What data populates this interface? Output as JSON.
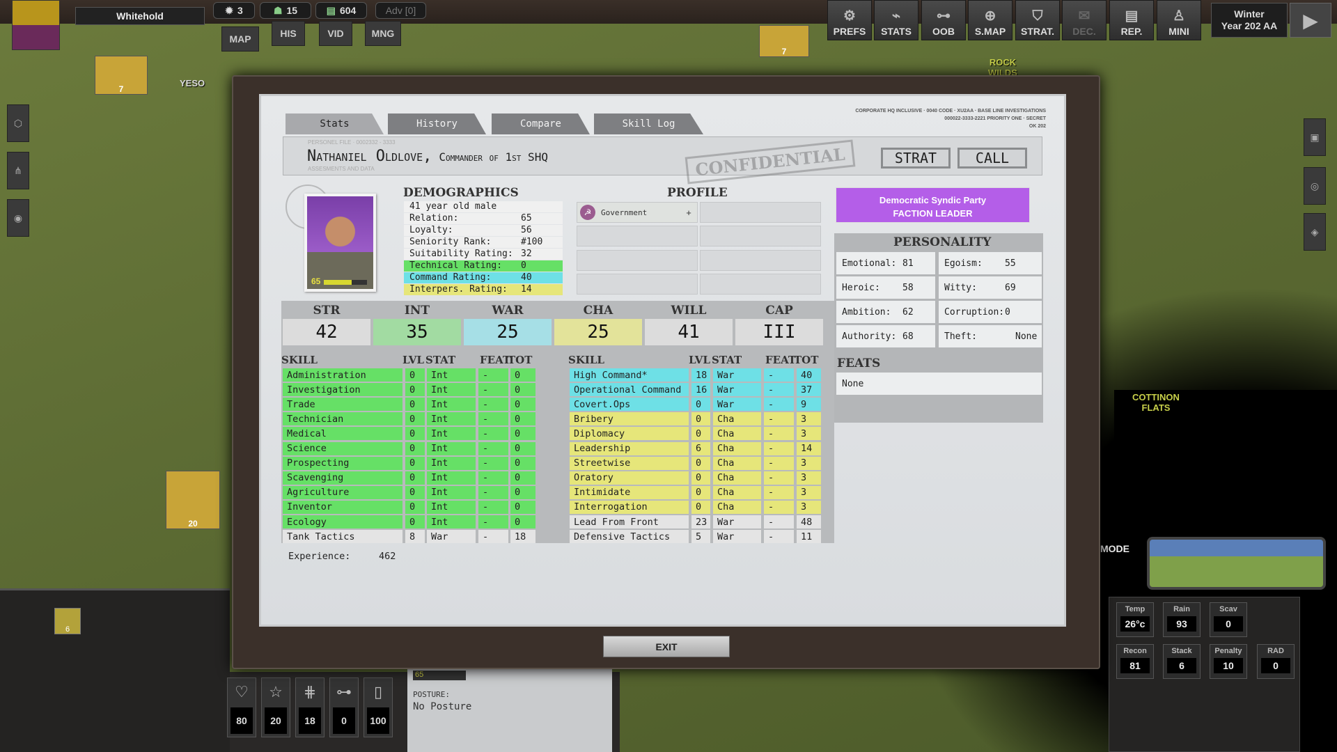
{
  "topbar": {
    "city": "Whitehold",
    "resources": [
      {
        "icon": "gear-icon",
        "value": "3"
      },
      {
        "icon": "soldier-icon",
        "value": "15"
      },
      {
        "icon": "money-icon",
        "value": "604"
      }
    ],
    "adv": "Adv [0]",
    "nav": [
      "MAP",
      "HIS",
      "VID",
      "MNG"
    ],
    "buttons": [
      "PREFS",
      "STATS",
      "OOB",
      "S.MAP",
      "STRAT.",
      "DEC.",
      "REP.",
      "MINI"
    ],
    "season": "Winter",
    "year": "Year 202 AA"
  },
  "map": {
    "labels": [
      "YESO",
      "ROCK WILDS",
      "COTTINON FLATS"
    ],
    "units": [
      {
        "value": "7"
      },
      {
        "value": "7"
      },
      {
        "value": "20"
      }
    ],
    "mode": "MODE"
  },
  "dialog": {
    "tabs": [
      "Stats",
      "History",
      "Compare",
      "Skill Log"
    ],
    "active_tab": "Stats",
    "classification": [
      "CORPORATE HQ INCLUSIVE · 0040 CODE · XU2AA · BASE LINE INVESTIGATIONS",
      "000022-3333-2221 PRIORITY ONE · SECRET",
      "OK 202"
    ],
    "file_label": "PERSONEL FILE · 0002332 - 3333",
    "file_sub": "ASSESMENTS AND DATA",
    "name": "Nathaniel Oldlove,",
    "title": "Commander of 1st SHQ",
    "stamp": "CONFIDENTIAL",
    "strat_button": "STRAT",
    "call_button": "CALL",
    "portrait_level": "65",
    "portrait_bar": 0.65,
    "demographics_title": "DEMOGRAPHICS",
    "demographics": [
      {
        "label": "41 year old male",
        "value": "",
        "color": "#f0f0f0"
      },
      {
        "label": "Relation:",
        "value": "65",
        "color": "#f0f0f0"
      },
      {
        "label": "Loyalty:",
        "value": "56",
        "color": "#f0f0f0"
      },
      {
        "label": "Seniority Rank:",
        "value": "#100",
        "color": "#f0f0f0"
      },
      {
        "label": "Suitability Rating:",
        "value": "32",
        "color": "#f0f0f0"
      },
      {
        "label": "Technical Rating:",
        "value": "0",
        "color": "#66e066"
      },
      {
        "label": "Command Rating:",
        "value": "40",
        "color": "#6ee0e6"
      },
      {
        "label": "Interpers. Rating:",
        "value": "14",
        "color": "#e6e67a"
      }
    ],
    "profile_title": "PROFILE",
    "profile": [
      {
        "label": "Government",
        "action": "+"
      }
    ],
    "faction": {
      "party": "Democratic Syndic Party",
      "role": "FACTION LEADER",
      "color": "#b45ee8"
    },
    "personality_title": "PERSONALITY",
    "personality": [
      {
        "label": "Emotional:",
        "value": "81"
      },
      {
        "label": "Egoism:",
        "value": "55"
      },
      {
        "label": "Heroic:",
        "value": "58"
      },
      {
        "label": "Witty:",
        "value": "69"
      },
      {
        "label": "Ambition:",
        "value": "62"
      },
      {
        "label": "Corruption:",
        "value": "0"
      },
      {
        "label": "Authority:",
        "value": "68"
      },
      {
        "label": "Theft:",
        "value": "None"
      }
    ],
    "feats_title": "FEATS",
    "feats": "None",
    "stats": [
      {
        "label": "STR",
        "value": "42",
        "color": "#dcdcdc"
      },
      {
        "label": "INT",
        "value": "35",
        "color": "#a2dba2"
      },
      {
        "label": "WAR",
        "value": "25",
        "color": "#a6dfe6"
      },
      {
        "label": "CHA",
        "value": "25",
        "color": "#e3e39a"
      },
      {
        "label": "WILL",
        "value": "41",
        "color": "#dcdcdc"
      },
      {
        "label": "CAP",
        "value": "III",
        "color": "#dcdcdc"
      }
    ],
    "skill_headers": [
      "SKILL",
      "LVL",
      "STAT",
      "FEAT",
      "TOT"
    ],
    "skills_left": [
      [
        "Administration",
        "0",
        "Int",
        "-",
        "0",
        "#66e066"
      ],
      [
        "Investigation",
        "0",
        "Int",
        "-",
        "0",
        "#66e066"
      ],
      [
        "Trade",
        "0",
        "Int",
        "-",
        "0",
        "#66e066"
      ],
      [
        "Technician",
        "0",
        "Int",
        "-",
        "0",
        "#66e066"
      ],
      [
        "Medical",
        "0",
        "Int",
        "-",
        "0",
        "#66e066"
      ],
      [
        "Science",
        "0",
        "Int",
        "-",
        "0",
        "#66e066"
      ],
      [
        "Prospecting",
        "0",
        "Int",
        "-",
        "0",
        "#66e066"
      ],
      [
        "Scavenging",
        "0",
        "Int",
        "-",
        "0",
        "#66e066"
      ],
      [
        "Agriculture",
        "0",
        "Int",
        "-",
        "0",
        "#66e066"
      ],
      [
        "Inventor",
        "0",
        "Int",
        "-",
        "0",
        "#66e066"
      ],
      [
        "Ecology",
        "0",
        "Int",
        "-",
        "0",
        "#66e066"
      ],
      [
        "Tank Tactics",
        "8",
        "War",
        "-",
        "18",
        "#e4e4e4"
      ]
    ],
    "skills_right": [
      [
        "High Command*",
        "18",
        "War",
        "-",
        "40",
        "#6ee0e6"
      ],
      [
        "Operational Command",
        "16",
        "War",
        "-",
        "37",
        "#6ee0e6"
      ],
      [
        "Covert.Ops",
        "0",
        "War",
        "-",
        "9",
        "#6ee0e6"
      ],
      [
        "Bribery",
        "0",
        "Cha",
        "-",
        "3",
        "#e6e67a"
      ],
      [
        "Diplomacy",
        "0",
        "Cha",
        "-",
        "3",
        "#e6e67a"
      ],
      [
        "Leadership",
        "6",
        "Cha",
        "-",
        "14",
        "#e6e67a"
      ],
      [
        "Streetwise",
        "0",
        "Cha",
        "-",
        "3",
        "#e6e67a"
      ],
      [
        "Oratory",
        "0",
        "Cha",
        "-",
        "3",
        "#e6e67a"
      ],
      [
        "Intimidate",
        "0",
        "Cha",
        "-",
        "3",
        "#e6e67a"
      ],
      [
        "Interrogation",
        "0",
        "Cha",
        "-",
        "3",
        "#e6e67a"
      ],
      [
        "Lead From Front",
        "23",
        "War",
        "-",
        "48",
        "#e4e4e4"
      ],
      [
        "Defensive Tactics",
        "5",
        "War",
        "-",
        "11",
        "#e4e4e4"
      ]
    ],
    "experience_label": "Experience:",
    "experience": "462",
    "exit_button": "EXIT"
  },
  "bottom": {
    "unit_value": "6",
    "stats": [
      {
        "icon": "heart-icon",
        "value": "80"
      },
      {
        "icon": "star-icon",
        "value": "20"
      },
      {
        "icon": "barbed-wire-icon",
        "value": "18"
      },
      {
        "icon": "hierarchy-icon",
        "value": "0"
      },
      {
        "icon": "canister-icon",
        "value": "100"
      }
    ],
    "posture_label": "POSTURE:",
    "posture": "No Posture",
    "posture_level": "65",
    "weather": [
      {
        "label": "Temp",
        "value": "26°c"
      },
      {
        "label": "Rain",
        "value": "93"
      },
      {
        "label": "Scav",
        "value": "0"
      },
      {
        "label": "Recon",
        "value": "81"
      },
      {
        "label": "Stack",
        "value": "6"
      },
      {
        "label": "Penalty",
        "value": "10"
      },
      {
        "label": "RAD",
        "value": "0"
      }
    ]
  }
}
